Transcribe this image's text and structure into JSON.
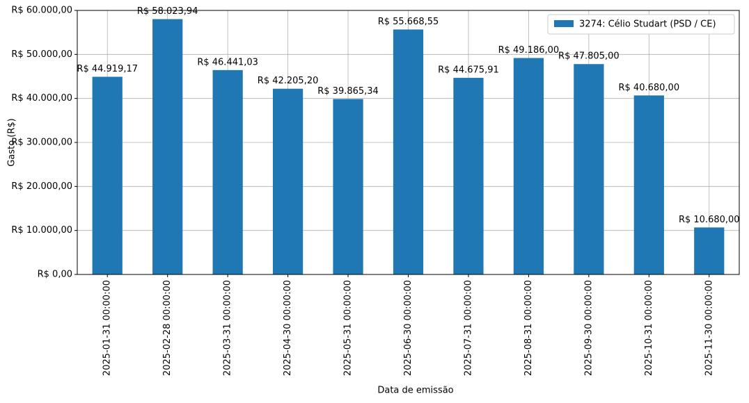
{
  "chart_data": {
    "type": "bar",
    "x_label": "Data de emissão",
    "y_label": "Gasto (R$)",
    "categories": [
      "2025-01-31 00:00:00",
      "2025-02-28 00:00:00",
      "2025-03-31 00:00:00",
      "2025-04-30 00:00:00",
      "2025-05-31 00:00:00",
      "2025-06-30 00:00:00",
      "2025-07-31 00:00:00",
      "2025-08-31 00:00:00",
      "2025-09-30 00:00:00",
      "2025-10-31 00:00:00",
      "2025-11-30 00:00:00"
    ],
    "series": [
      {
        "name": "3274: Célio Studart (PSD / CE)",
        "color": "#1f77b4",
        "values": [
          44919.17,
          58023.94,
          46441.03,
          42205.2,
          39865.34,
          55668.55,
          44675.91,
          49186.0,
          47805.0,
          40680.0,
          10680.0
        ],
        "value_labels": [
          "R$ 44.919,17",
          "R$ 58.023,94",
          "R$ 46.441,03",
          "R$ 42.205,20",
          "R$ 39.865,34",
          "R$ 55.668,55",
          "R$ 44.675,91",
          "R$ 49.186,00",
          "R$ 47.805,00",
          "R$ 40.680,00",
          "R$ 10.680,00"
        ]
      }
    ],
    "ylim": [
      0,
      60000
    ],
    "yticks": [
      {
        "value": 0,
        "label": "R$ 0,00"
      },
      {
        "value": 10000,
        "label": "R$ 10.000,00"
      },
      {
        "value": 20000,
        "label": "R$ 20.000,00"
      },
      {
        "value": 30000,
        "label": "R$ 30.000,00"
      },
      {
        "value": 40000,
        "label": "R$ 40.000,00"
      },
      {
        "value": 50000,
        "label": "R$ 50.000,00"
      },
      {
        "value": 60000,
        "label": "R$ 60.000,00"
      }
    ],
    "grid": true,
    "legend": "upper right"
  }
}
